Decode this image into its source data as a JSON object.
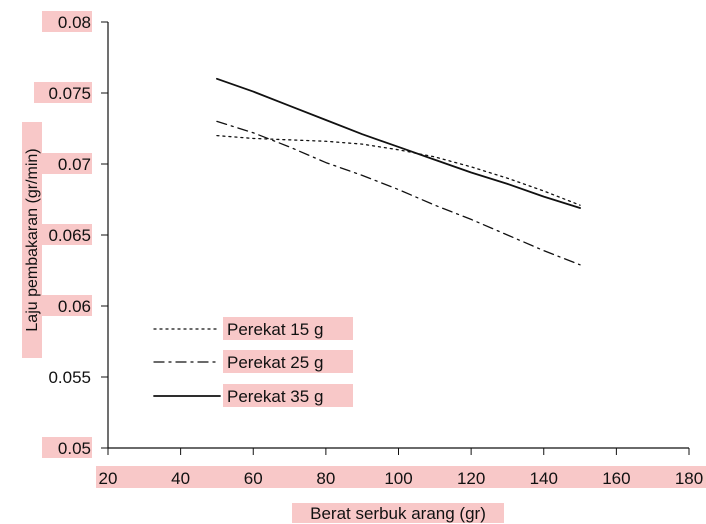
{
  "chart_data": {
    "type": "line",
    "title": "",
    "xlabel": "Berat serbuk arang (gr)",
    "ylabel": "Laju pembakaran (gr/min)",
    "xlim": [
      20,
      180
    ],
    "ylim": [
      0.05,
      0.08
    ],
    "x_ticks": [
      "20",
      "40",
      "60",
      "80",
      "100",
      "120",
      "140",
      "160",
      "180"
    ],
    "y_ticks": [
      "0.05",
      "0.055",
      "0.06",
      "0.065",
      "0.07",
      "0.075",
      "0.08"
    ],
    "grid": false,
    "legend_position": "bottom-left",
    "series": [
      {
        "name": "Perekat 15 g",
        "style": "dotted",
        "x": [
          50,
          60,
          80,
          90,
          100,
          110,
          120,
          130,
          140,
          150
        ],
        "y": [
          0.072,
          0.0718,
          0.0716,
          0.0714,
          0.071,
          0.0705,
          0.0698,
          0.069,
          0.0681,
          0.0671
        ]
      },
      {
        "name": "Perekat 25 g",
        "style": "dash-dot",
        "x": [
          50,
          60,
          70,
          80,
          90,
          100,
          110,
          120,
          130,
          140,
          150
        ],
        "y": [
          0.073,
          0.0722,
          0.0712,
          0.0701,
          0.0692,
          0.0682,
          0.0671,
          0.0661,
          0.065,
          0.0639,
          0.0629
        ]
      },
      {
        "name": "Perekat 35 g",
        "style": "solid",
        "x": [
          50,
          60,
          70,
          80,
          90,
          100,
          110,
          120,
          130,
          140,
          150
        ],
        "y": [
          0.076,
          0.0751,
          0.0741,
          0.0731,
          0.0721,
          0.0712,
          0.0703,
          0.0694,
          0.0686,
          0.0677,
          0.0669
        ]
      }
    ],
    "colors": {
      "line": "#111111",
      "label_highlight": "#f8c8c8",
      "background": "#ffffff"
    }
  }
}
